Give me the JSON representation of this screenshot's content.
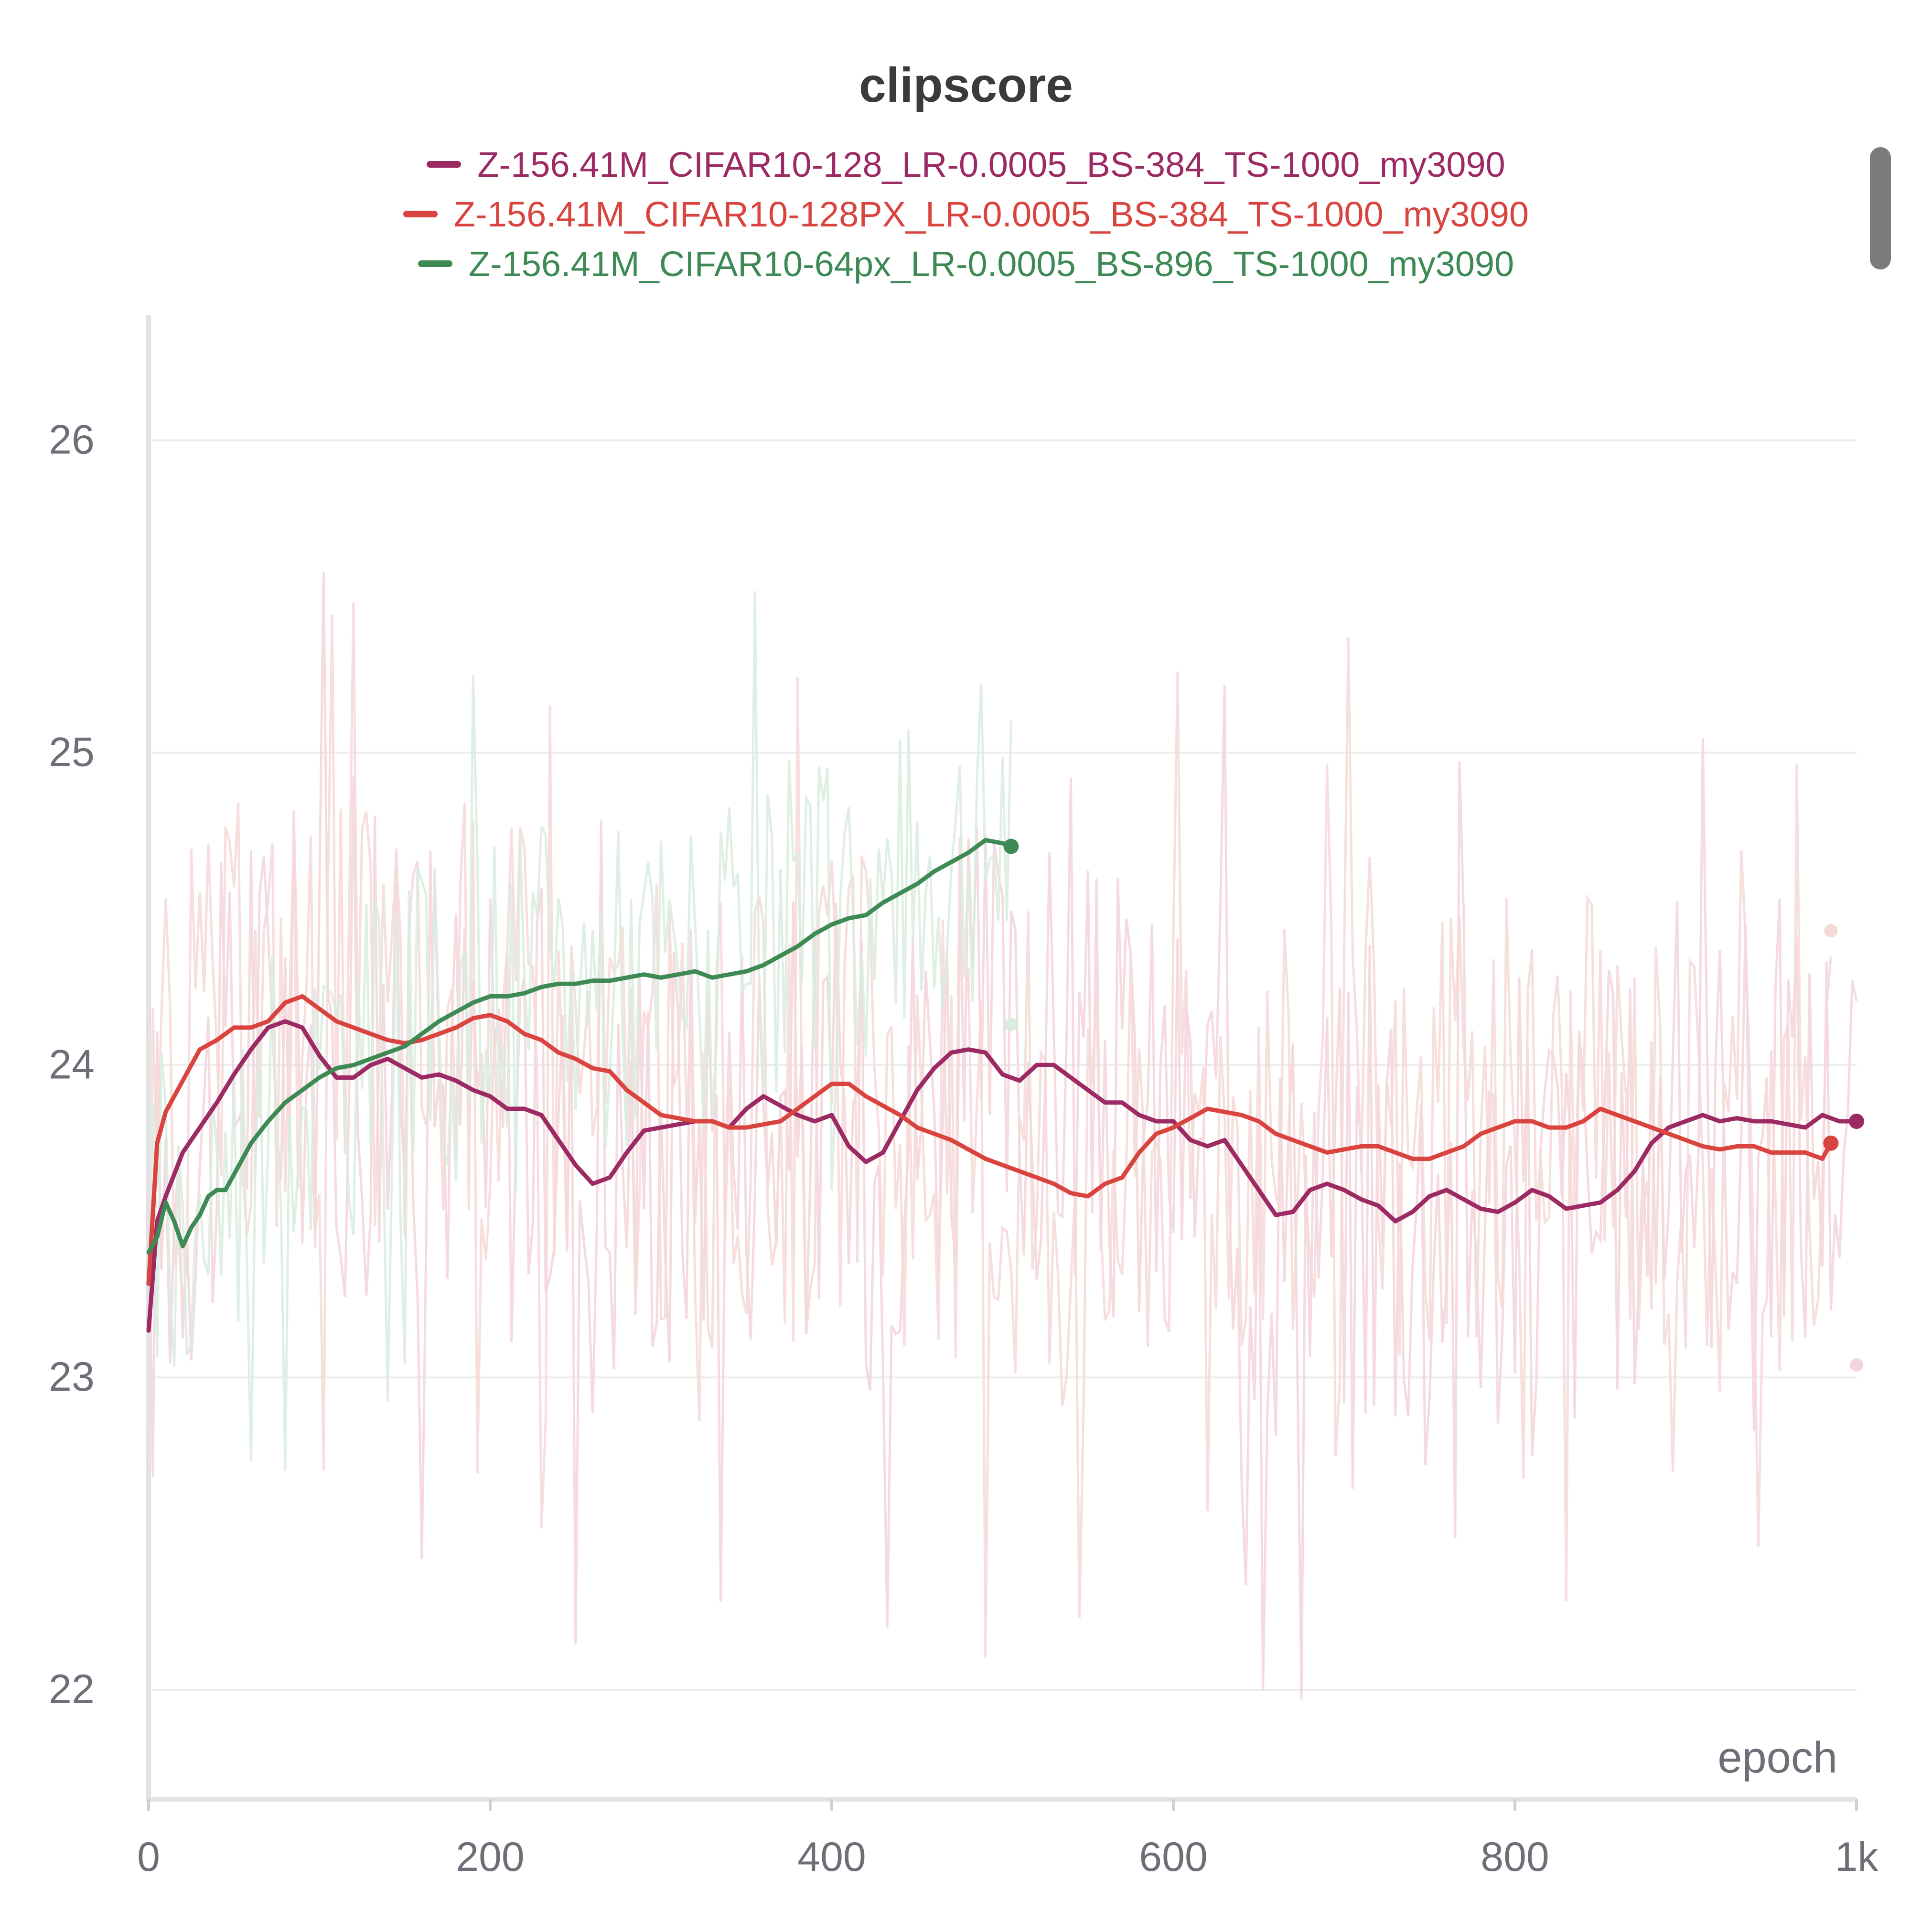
{
  "chart_data": {
    "type": "line",
    "title": "clipscore",
    "xlabel": "epoch",
    "ylabel": "",
    "xlim": [
      0,
      1000
    ],
    "ylim": [
      21.65,
      26.4
    ],
    "grid": true,
    "legend_position": "top",
    "x_ticks": [
      0,
      200,
      400,
      600,
      800,
      1000
    ],
    "x_tick_labels": [
      "0",
      "200",
      "400",
      "600",
      "800",
      "1k"
    ],
    "y_ticks": [
      22,
      23,
      24,
      25,
      26
    ],
    "y_tick_labels": [
      "22",
      "23",
      "24",
      "25",
      "26"
    ],
    "series": [
      {
        "name": "Z-156.41M_CIFAR10-128_LR-0.0005_BS-384_TS-1000_my3090",
        "color": "#9c2a63",
        "x": [
          0,
          5,
          10,
          20,
          30,
          40,
          50,
          60,
          70,
          80,
          90,
          100,
          110,
          120,
          130,
          140,
          150,
          160,
          170,
          180,
          190,
          200,
          210,
          220,
          230,
          240,
          250,
          260,
          270,
          280,
          290,
          300,
          310,
          320,
          330,
          340,
          350,
          360,
          370,
          380,
          390,
          400,
          410,
          420,
          430,
          440,
          450,
          460,
          470,
          480,
          490,
          500,
          510,
          520,
          530,
          540,
          550,
          560,
          570,
          580,
          590,
          600,
          610,
          620,
          630,
          640,
          650,
          660,
          670,
          680,
          690,
          700,
          710,
          720,
          730,
          740,
          750,
          760,
          770,
          780,
          790,
          800,
          810,
          820,
          830,
          840,
          850,
          860,
          870,
          880,
          890,
          900,
          910,
          920,
          930,
          940,
          950,
          960,
          970,
          980,
          990,
          1000
        ],
        "values": [
          23.15,
          23.5,
          23.58,
          23.72,
          23.8,
          23.88,
          23.97,
          24.05,
          24.12,
          24.14,
          24.12,
          24.03,
          23.96,
          23.96,
          24.0,
          24.02,
          23.99,
          23.96,
          23.97,
          23.95,
          23.92,
          23.9,
          23.86,
          23.86,
          23.84,
          23.76,
          23.68,
          23.62,
          23.64,
          23.72,
          23.79,
          23.8,
          23.81,
          23.82,
          23.82,
          23.8,
          23.86,
          23.9,
          23.87,
          23.84,
          23.82,
          23.84,
          23.74,
          23.69,
          23.72,
          23.82,
          23.92,
          23.99,
          24.04,
          24.05,
          24.04,
          23.97,
          23.95,
          24.0,
          24.0,
          23.96,
          23.92,
          23.88,
          23.88,
          23.84,
          23.82,
          23.82,
          23.76,
          23.74,
          23.76,
          23.68,
          23.6,
          23.52,
          23.53,
          23.6,
          23.62,
          23.6,
          23.57,
          23.55,
          23.5,
          23.53,
          23.58,
          23.6,
          23.57,
          23.54,
          23.53,
          23.56,
          23.6,
          23.58,
          23.54,
          23.55,
          23.56,
          23.6,
          23.66,
          23.75,
          23.8,
          23.82,
          23.84,
          23.82,
          23.83,
          23.82,
          23.82,
          23.81,
          23.8,
          23.84,
          23.82,
          23.82
        ],
        "last_raw_value": 23.04
      },
      {
        "name": "Z-156.41M_CIFAR10-128PX_LR-0.0005_BS-384_TS-1000_my3090",
        "color": "#d9443f",
        "x": [
          0,
          5,
          10,
          20,
          30,
          40,
          50,
          60,
          70,
          80,
          90,
          100,
          110,
          120,
          130,
          140,
          150,
          160,
          170,
          180,
          190,
          200,
          210,
          220,
          230,
          240,
          250,
          260,
          270,
          280,
          290,
          300,
          310,
          320,
          330,
          340,
          350,
          360,
          370,
          380,
          390,
          400,
          410,
          420,
          430,
          440,
          450,
          460,
          470,
          480,
          490,
          500,
          510,
          520,
          530,
          540,
          550,
          560,
          570,
          580,
          590,
          600,
          610,
          620,
          630,
          640,
          650,
          660,
          670,
          680,
          690,
          700,
          710,
          720,
          730,
          740,
          750,
          760,
          770,
          780,
          790,
          800,
          810,
          820,
          830,
          840,
          850,
          860,
          870,
          880,
          890,
          900,
          910,
          920,
          930,
          940,
          950,
          960,
          970,
          980,
          985
        ],
        "values": [
          23.3,
          23.75,
          23.85,
          23.95,
          24.05,
          24.08,
          24.12,
          24.12,
          24.14,
          24.2,
          24.22,
          24.18,
          24.14,
          24.12,
          24.1,
          24.08,
          24.07,
          24.08,
          24.1,
          24.12,
          24.15,
          24.16,
          24.14,
          24.1,
          24.08,
          24.04,
          24.02,
          23.99,
          23.98,
          23.92,
          23.88,
          23.84,
          23.83,
          23.82,
          23.82,
          23.8,
          23.8,
          23.81,
          23.82,
          23.86,
          23.9,
          23.94,
          23.94,
          23.9,
          23.87,
          23.84,
          23.8,
          23.78,
          23.76,
          23.73,
          23.7,
          23.68,
          23.66,
          23.64,
          23.62,
          23.59,
          23.58,
          23.62,
          23.64,
          23.72,
          23.78,
          23.8,
          23.83,
          23.86,
          23.85,
          23.84,
          23.82,
          23.78,
          23.76,
          23.74,
          23.72,
          23.73,
          23.74,
          23.74,
          23.72,
          23.7,
          23.7,
          23.72,
          23.74,
          23.78,
          23.8,
          23.82,
          23.82,
          23.8,
          23.8,
          23.82,
          23.86,
          23.84,
          23.82,
          23.8,
          23.78,
          23.76,
          23.74,
          23.73,
          23.74,
          23.74,
          23.72,
          23.72,
          23.72,
          23.7,
          23.75
        ],
        "last_raw_value": 24.43
      },
      {
        "name": "Z-156.41M_CIFAR10-64px_LR-0.0005_BS-896_TS-1000_my3090",
        "color": "#3d8a55",
        "x": [
          0,
          5,
          10,
          15,
          20,
          25,
          30,
          35,
          40,
          45,
          50,
          60,
          70,
          80,
          90,
          100,
          110,
          120,
          130,
          140,
          150,
          160,
          170,
          180,
          190,
          200,
          210,
          220,
          230,
          240,
          250,
          260,
          270,
          280,
          290,
          300,
          310,
          320,
          330,
          340,
          350,
          360,
          370,
          380,
          390,
          400,
          410,
          420,
          430,
          440,
          450,
          460,
          470,
          480,
          490,
          500,
          505
        ],
        "values": [
          23.4,
          23.45,
          23.56,
          23.5,
          23.42,
          23.48,
          23.52,
          23.58,
          23.6,
          23.6,
          23.65,
          23.75,
          23.82,
          23.88,
          23.92,
          23.96,
          23.99,
          24.0,
          24.02,
          24.04,
          24.06,
          24.1,
          24.14,
          24.17,
          24.2,
          24.22,
          24.22,
          24.23,
          24.25,
          24.26,
          24.26,
          24.27,
          24.27,
          24.28,
          24.29,
          24.28,
          24.29,
          24.3,
          24.28,
          24.29,
          24.3,
          24.32,
          24.35,
          24.38,
          24.42,
          24.45,
          24.47,
          24.48,
          24.52,
          24.55,
          24.58,
          24.62,
          24.65,
          24.68,
          24.72,
          24.71,
          24.7
        ],
        "last_raw_value": 24.13
      }
    ]
  }
}
